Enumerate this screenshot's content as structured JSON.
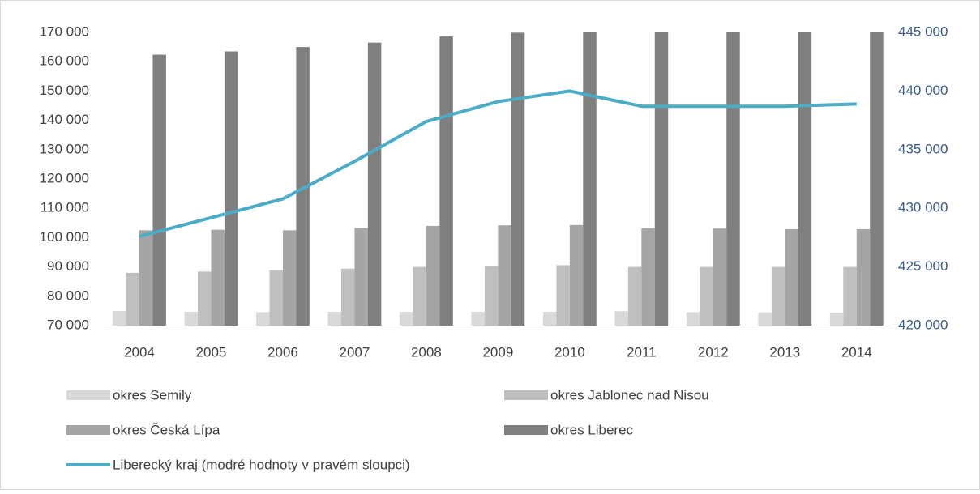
{
  "chart_data": {
    "type": "bar",
    "categories": [
      "2004",
      "2005",
      "2006",
      "2007",
      "2008",
      "2009",
      "2010",
      "2011",
      "2012",
      "2013",
      "2014"
    ],
    "series": [
      {
        "name": "okres Semily",
        "color": "#d9d9d9",
        "values": [
          75000,
          74700,
          74600,
          74700,
          74700,
          74700,
          74700,
          74900,
          74600,
          74500,
          74400
        ]
      },
      {
        "name": "okres Jablonec nad Nisou",
        "color": "#bfbfbf",
        "values": [
          88000,
          88400,
          88900,
          89400,
          90000,
          90400,
          90600,
          90000,
          90000,
          90000,
          90000
        ]
      },
      {
        "name": "okres Česká Lípa",
        "color": "#a5a5a5",
        "values": [
          102500,
          102700,
          102500,
          103300,
          104000,
          104200,
          104300,
          103200,
          103100,
          102900,
          102900
        ]
      },
      {
        "name": "okres Liberec",
        "color": "#7f7f7f",
        "values": [
          162400,
          163500,
          165000,
          166500,
          168600,
          169900,
          171000,
          172000,
          172500,
          173000,
          173500
        ]
      },
      {
        "name": "Liberecký kraj (modré hodnoty v pravém sloupci)",
        "color": "#4bacc6",
        "type": "line",
        "axis": "y2",
        "values": [
          427600,
          429200,
          430800,
          434000,
          437400,
          439100,
          440000,
          438700,
          438700,
          438700,
          438900
        ]
      }
    ],
    "ylim": [
      70000,
      170000
    ],
    "yticks": [
      {
        "value": 70000,
        "label": "70 000"
      },
      {
        "value": 80000,
        "label": "80 000"
      },
      {
        "value": 90000,
        "label": "90 000"
      },
      {
        "value": 100000,
        "label": "100 000"
      },
      {
        "value": 110000,
        "label": "110 000"
      },
      {
        "value": 120000,
        "label": "120 000"
      },
      {
        "value": 130000,
        "label": "130 000"
      },
      {
        "value": 140000,
        "label": "140 000"
      },
      {
        "value": 150000,
        "label": "150 000"
      },
      {
        "value": 160000,
        "label": "160 000"
      },
      {
        "value": 170000,
        "label": "170 000"
      }
    ],
    "y2lim": [
      420000,
      445000
    ],
    "y2ticks": [
      {
        "value": 420000,
        "label": "420 000"
      },
      {
        "value": 425000,
        "label": "425 000"
      },
      {
        "value": 430000,
        "label": "430 000"
      },
      {
        "value": 435000,
        "label": "435 000"
      },
      {
        "value": 440000,
        "label": "440 000"
      },
      {
        "value": 445000,
        "label": "445 000"
      }
    ],
    "legend": "bottom"
  }
}
